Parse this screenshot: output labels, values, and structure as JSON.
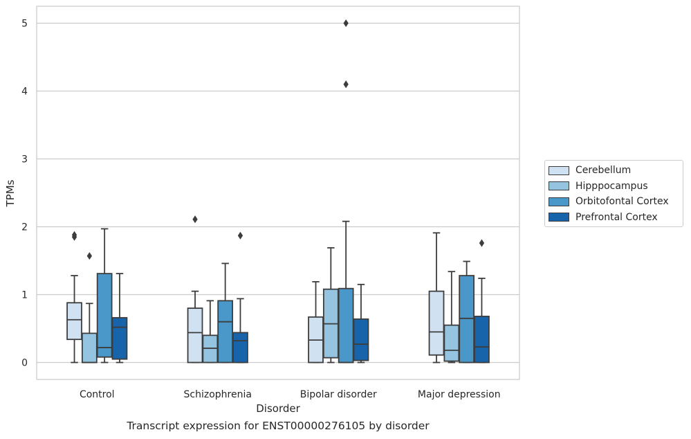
{
  "chart_data": {
    "type": "box",
    "title": "Transcript expression for ENST00000276105 by disorder",
    "xlabel": "Disorder",
    "ylabel": "TPMs",
    "ylim": [
      -0.25,
      5.25
    ],
    "yticks": [
      0,
      1,
      2,
      3,
      4,
      5
    ],
    "grid": true,
    "legend_position": "right",
    "categories": [
      "Control",
      "Schizophrenia",
      "Bipolar disorder",
      "Major depression"
    ],
    "series": [
      {
        "name": "Cerebellum",
        "color": "#d0e1f2",
        "boxes": [
          {
            "whisker_low": 0.0,
            "q1": 0.34,
            "median": 0.63,
            "q3": 0.88,
            "whisker_high": 1.28,
            "outliers": [
              1.85,
              1.88
            ]
          },
          {
            "whisker_low": 0.0,
            "q1": 0.0,
            "median": 0.44,
            "q3": 0.8,
            "whisker_high": 1.05,
            "outliers": [
              2.11
            ]
          },
          {
            "whisker_low": 0.0,
            "q1": 0.0,
            "median": 0.33,
            "q3": 0.67,
            "whisker_high": 1.19,
            "outliers": []
          },
          {
            "whisker_low": 0.0,
            "q1": 0.11,
            "median": 0.45,
            "q3": 1.05,
            "whisker_high": 1.91,
            "outliers": []
          }
        ]
      },
      {
        "name": "Hipppocampus",
        "color": "#94c4df",
        "boxes": [
          {
            "whisker_low": 0.0,
            "q1": 0.0,
            "median": 0.0,
            "q3": 0.43,
            "whisker_high": 0.87,
            "outliers": [
              1.57
            ]
          },
          {
            "whisker_low": 0.0,
            "q1": 0.0,
            "median": 0.21,
            "q3": 0.4,
            "whisker_high": 0.91,
            "outliers": []
          },
          {
            "whisker_low": 0.0,
            "q1": 0.07,
            "median": 0.57,
            "q3": 1.08,
            "whisker_high": 1.69,
            "outliers": []
          },
          {
            "whisker_low": 0.0,
            "q1": 0.02,
            "median": 0.18,
            "q3": 0.55,
            "whisker_high": 1.34,
            "outliers": []
          }
        ]
      },
      {
        "name": "Orbitofontal Cortex",
        "color": "#4a98c9",
        "boxes": [
          {
            "whisker_low": 0.0,
            "q1": 0.08,
            "median": 0.22,
            "q3": 1.31,
            "whisker_high": 1.97,
            "outliers": []
          },
          {
            "whisker_low": 0.0,
            "q1": 0.0,
            "median": 0.6,
            "q3": 0.91,
            "whisker_high": 1.46,
            "outliers": []
          },
          {
            "whisker_low": 0.0,
            "q1": 0.0,
            "median": 0.0,
            "q3": 1.09,
            "whisker_high": 2.08,
            "outliers": [
              4.1,
              5.0
            ]
          },
          {
            "whisker_low": 0.0,
            "q1": 0.0,
            "median": 0.65,
            "q3": 1.28,
            "whisker_high": 1.49,
            "outliers": []
          }
        ]
      },
      {
        "name": "Prefrontal Cortex",
        "color": "#1764ab",
        "boxes": [
          {
            "whisker_low": 0.0,
            "q1": 0.05,
            "median": 0.52,
            "q3": 0.66,
            "whisker_high": 1.31,
            "outliers": []
          },
          {
            "whisker_low": 0.0,
            "q1": 0.0,
            "median": 0.32,
            "q3": 0.44,
            "whisker_high": 0.94,
            "outliers": [
              1.87
            ]
          },
          {
            "whisker_low": 0.0,
            "q1": 0.03,
            "median": 0.27,
            "q3": 0.64,
            "whisker_high": 1.15,
            "outliers": []
          },
          {
            "whisker_low": 0.0,
            "q1": 0.0,
            "median": 0.23,
            "q3": 0.68,
            "whisker_high": 1.24,
            "outliers": [
              1.76
            ]
          }
        ]
      }
    ]
  }
}
